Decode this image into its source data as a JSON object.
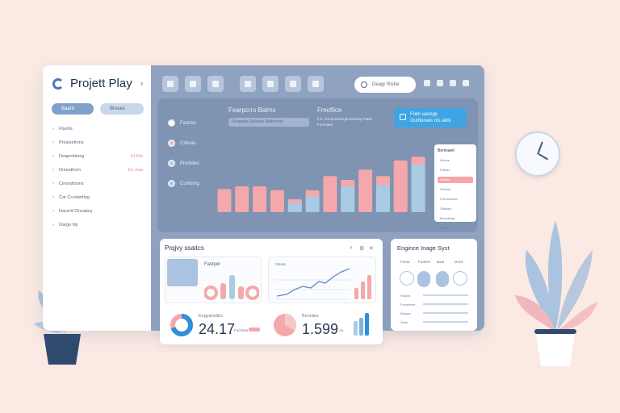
{
  "app": {
    "title": "Projett Play"
  },
  "sidebar": {
    "pills": [
      "Baard",
      "Broues"
    ],
    "items": [
      {
        "label": "Fbarits",
        "badge": ""
      },
      {
        "label": "Proalsettons",
        "badge": ""
      },
      {
        "label": "Deaproblong",
        "badge": "Ef Arbi"
      },
      {
        "label": "Dmoathom",
        "badge": "Ea Jnas"
      },
      {
        "label": "Cinsrattsons",
        "badge": ""
      },
      {
        "label": "Car Ccvdanting",
        "badge": ""
      },
      {
        "label": "Dacsrtt Clnsatiny",
        "badge": ""
      },
      {
        "label": "Oarge tliy",
        "badge": ""
      }
    ]
  },
  "toolbar": {
    "search_placeholder": "Deagr Rishe"
  },
  "overview": {
    "legend": [
      "Fastras",
      "Cstisas",
      "Prortides",
      "Curlismg"
    ],
    "chart_title": "Fearpcrrs Balms",
    "chart_sub": "Feopuisy Gelnasc Reticontel",
    "right_title": "Fmofilce",
    "right_sub": "Fre, Gorniot Bargie Bonsiop Fatils Foornaes",
    "cta": "Fokil uasnge Ourltorees nts alirk",
    "side_list": {
      "title": "Bemsaek",
      "rows": [
        "Gronar",
        "Fobslrs",
        "Saarvs",
        "Orlusss",
        "Foenarmnod",
        "Ctbtsaiit",
        "Besrotbolg",
        "Gouhl"
      ],
      "highlight_index": 2
    }
  },
  "chart_data": {
    "type": "bar",
    "series": [
      {
        "name": "",
        "values": [
          36,
          40,
          40,
          34,
          20,
          34,
          56,
          50,
          66,
          56,
          80,
          86
        ]
      },
      {
        "name": "",
        "values": [
          0,
          0,
          0,
          0,
          14,
          24,
          0,
          40,
          0,
          42,
          0,
          74
        ]
      }
    ],
    "ylim": [
      0,
      100
    ],
    "colors": {
      "pink": "#f4a8ab",
      "blue": "#a9cbe4"
    }
  },
  "projects_card": {
    "title": "Prqjvy ssaitcs",
    "mini1_title": "Fastyer",
    "mini2_title": "Slanat",
    "metric1": {
      "label": "Engyahvtibs",
      "value": "24.17",
      "sub": "Fuchsne"
    },
    "metric2": {
      "label": "Bnnrdes",
      "value": "1.599",
      "sub": "Ae"
    }
  },
  "engine_card": {
    "title": "Engince Inage Syst",
    "cols": [
      "Fama",
      "Fuakoe",
      "Baat",
      "Drasl"
    ],
    "rows": [
      "Foacrs",
      "Fueorerne",
      "Bragse",
      "Ghat"
    ]
  }
}
